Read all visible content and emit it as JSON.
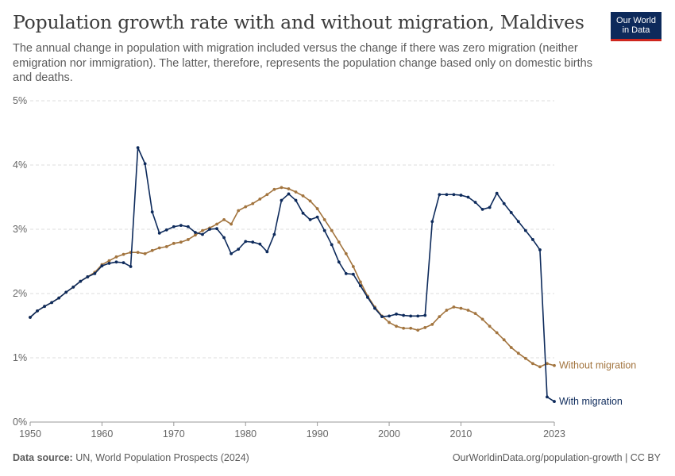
{
  "header": {
    "title": "Population growth rate with and without migration, Maldives",
    "subtitle": "The annual change in population with migration included versus the change if there was zero migration (neither emigration nor immigration). The latter, therefore, represents the population change based only on domestic births and deaths.",
    "logo_line1": "Our World",
    "logo_line2": "in Data"
  },
  "footer": {
    "source_label": "Data source:",
    "source_text": "UN, World Population Prospects (2024)",
    "url_text": "OurWorldinData.org/population-growth | CC BY"
  },
  "colors": {
    "with_migration": "#0d2a5b",
    "without_migration": "#a2743e",
    "grid": "#dddddd",
    "axis": "#999999",
    "tick_text": "#666666",
    "logo_bg": "#0d2a5b",
    "logo_accent": "#ce261e"
  },
  "chart_data": {
    "type": "line",
    "title": "Population growth rate with and without migration, Maldives",
    "xlabel": "",
    "ylabel": "",
    "xlim": [
      1950,
      2023
    ],
    "ylim": [
      0,
      5
    ],
    "x_ticks": [
      "1950",
      "1960",
      "1970",
      "1980",
      "1990",
      "2000",
      "2010",
      "2023"
    ],
    "y_ticks": [
      "0%",
      "1%",
      "2%",
      "3%",
      "4%",
      "5%"
    ],
    "grid": "horizontal dashed",
    "legend": "inline labels at line ends (right)",
    "x": [
      1950,
      1951,
      1952,
      1953,
      1954,
      1955,
      1956,
      1957,
      1958,
      1959,
      1960,
      1961,
      1962,
      1963,
      1964,
      1965,
      1966,
      1967,
      1968,
      1969,
      1970,
      1971,
      1972,
      1973,
      1974,
      1975,
      1976,
      1977,
      1978,
      1979,
      1980,
      1981,
      1982,
      1983,
      1984,
      1985,
      1986,
      1987,
      1988,
      1989,
      1990,
      1991,
      1992,
      1993,
      1994,
      1995,
      1996,
      1997,
      1998,
      1999,
      2000,
      2001,
      2002,
      2003,
      2004,
      2005,
      2006,
      2007,
      2008,
      2009,
      2010,
      2011,
      2012,
      2013,
      2014,
      2015,
      2016,
      2017,
      2018,
      2019,
      2020,
      2021,
      2022,
      2023
    ],
    "series": [
      {
        "name": "With migration",
        "color": "#0d2a5b",
        "values": [
          1.63,
          1.73,
          1.8,
          1.86,
          1.93,
          2.02,
          2.1,
          2.19,
          2.26,
          2.31,
          2.43,
          2.47,
          2.49,
          2.48,
          2.42,
          4.27,
          4.02,
          3.27,
          2.94,
          2.99,
          3.04,
          3.06,
          3.04,
          2.95,
          2.92,
          3.0,
          3.01,
          2.87,
          2.62,
          2.69,
          2.81,
          2.8,
          2.77,
          2.65,
          2.92,
          3.45,
          3.55,
          3.45,
          3.25,
          3.15,
          3.19,
          2.98,
          2.76,
          2.49,
          2.31,
          2.3,
          2.12,
          1.94,
          1.77,
          1.64,
          1.65,
          1.68,
          1.66,
          1.65,
          1.65,
          1.66,
          3.12,
          3.54,
          3.54,
          3.54,
          3.53,
          3.5,
          3.42,
          3.31,
          3.34,
          3.56,
          3.4,
          3.26,
          3.12,
          2.98,
          2.84,
          2.68,
          0.39,
          0.32
        ]
      },
      {
        "name": "Without migration",
        "color": "#a2743e",
        "values": [
          1.63,
          1.73,
          1.8,
          1.86,
          1.93,
          2.02,
          2.1,
          2.19,
          2.26,
          2.33,
          2.45,
          2.51,
          2.57,
          2.61,
          2.64,
          2.64,
          2.62,
          2.67,
          2.71,
          2.73,
          2.78,
          2.8,
          2.84,
          2.91,
          2.98,
          3.02,
          3.08,
          3.15,
          3.08,
          3.29,
          3.35,
          3.4,
          3.47,
          3.54,
          3.62,
          3.65,
          3.63,
          3.58,
          3.52,
          3.44,
          3.32,
          3.15,
          2.98,
          2.8,
          2.62,
          2.42,
          2.18,
          1.96,
          1.79,
          1.65,
          1.55,
          1.49,
          1.46,
          1.46,
          1.43,
          1.47,
          1.52,
          1.64,
          1.74,
          1.79,
          1.77,
          1.74,
          1.69,
          1.6,
          1.49,
          1.39,
          1.28,
          1.16,
          1.07,
          0.99,
          0.91,
          0.86,
          0.91,
          0.88
        ]
      }
    ]
  }
}
